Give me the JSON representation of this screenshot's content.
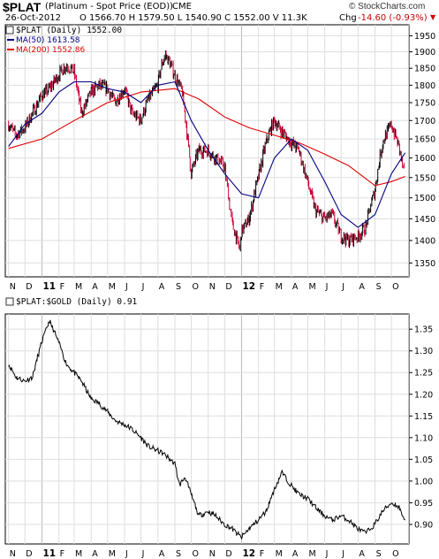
{
  "header": {
    "symbol": "$PLAT",
    "description": "(Platinum  - Spot Price (EOD))",
    "exchange": "CME",
    "date": "26-Oct-2012",
    "quote": "O 1566.70  H 1579.50  L 1540.90  C 1552.00  V 11.3K",
    "chg_label": "Chg",
    "chg_value": "-14.60 (-0.93%)",
    "chg_arrow": "▼",
    "watermark": "© StockCharts.com"
  },
  "legend": {
    "price": "$PLAT (Daily) 1552.00",
    "ma50": "MA(50) 1613.58",
    "ma200": "MA(200) 1552.86",
    "ratio": "$PLAT:$GOLD (Daily) 0.91"
  },
  "colors": {
    "up_bar": "#000000",
    "down_bar": "#cc0033",
    "ma50": "#000080",
    "ma200": "#e00000",
    "ratio_line": "#000000",
    "grid": "#dddddd",
    "year_divider": "#bbbbbb"
  },
  "chart_data": [
    {
      "type": "candlestick",
      "title": "$PLAT (Daily) 1552.00",
      "ylim": [
        1320,
        1985
      ],
      "y_ticks": [
        1350,
        1400,
        1450,
        1500,
        1550,
        1600,
        1650,
        1700,
        1750,
        1800,
        1850,
        1900,
        1950
      ],
      "x_tick_labels": [
        "N",
        "D",
        "11",
        "F",
        "M",
        "A",
        "M",
        "J",
        "J",
        "A",
        "S",
        "O",
        "N",
        "D",
        "12",
        "F",
        "M",
        "A",
        "M",
        "J",
        "J",
        "A",
        "S",
        "O"
      ],
      "scale": "log",
      "series": [
        {
          "name": "$PLAT",
          "x": [
            "2010-11-01",
            "2010-11-15",
            "2010-12-01",
            "2010-12-15",
            "2011-01-01",
            "2011-01-15",
            "2011-02-01",
            "2011-02-15",
            "2011-03-01",
            "2011-03-15",
            "2011-04-01",
            "2011-04-15",
            "2011-05-01",
            "2011-05-15",
            "2011-06-01",
            "2011-06-15",
            "2011-07-01",
            "2011-07-15",
            "2011-08-01",
            "2011-08-08",
            "2011-08-15",
            "2011-08-22",
            "2011-09-01",
            "2011-09-15",
            "2011-09-22",
            "2011-10-01",
            "2011-10-15",
            "2011-11-01",
            "2011-11-15",
            "2011-12-01",
            "2011-12-15",
            "2011-12-29",
            "2012-01-01",
            "2012-01-15",
            "2012-02-01",
            "2012-02-15",
            "2012-03-01",
            "2012-03-15",
            "2012-04-01",
            "2012-04-15",
            "2012-05-01",
            "2012-05-15",
            "2012-06-01",
            "2012-06-15",
            "2012-07-01",
            "2012-07-15",
            "2012-08-01",
            "2012-08-15",
            "2012-09-01",
            "2012-09-15",
            "2012-10-01",
            "2012-10-15",
            "2012-10-26"
          ],
          "values": [
            1690,
            1660,
            1680,
            1720,
            1770,
            1790,
            1830,
            1860,
            1840,
            1720,
            1780,
            1800,
            1790,
            1750,
            1790,
            1720,
            1700,
            1760,
            1800,
            1860,
            1890,
            1870,
            1830,
            1780,
            1690,
            1560,
            1620,
            1620,
            1600,
            1580,
            1440,
            1380,
            1420,
            1450,
            1550,
            1640,
            1700,
            1670,
            1640,
            1620,
            1540,
            1470,
            1450,
            1460,
            1410,
            1400,
            1410,
            1430,
            1520,
            1640,
            1690,
            1630,
            1552
          ]
        },
        {
          "name": "MA(50)",
          "x": [
            "2010-11-01",
            "2010-12-01",
            "2011-01-01",
            "2011-02-01",
            "2011-03-01",
            "2011-04-01",
            "2011-05-01",
            "2011-06-01",
            "2011-07-01",
            "2011-08-01",
            "2011-09-01",
            "2011-10-01",
            "2011-11-01",
            "2011-12-01",
            "2012-01-01",
            "2012-02-01",
            "2012-03-01",
            "2012-04-01",
            "2012-05-01",
            "2012-06-01",
            "2012-07-01",
            "2012-08-01",
            "2012-09-01",
            "2012-10-01",
            "2012-10-26"
          ],
          "values": [
            1630,
            1690,
            1720,
            1780,
            1810,
            1810,
            1790,
            1780,
            1750,
            1800,
            1810,
            1700,
            1620,
            1560,
            1510,
            1500,
            1600,
            1650,
            1620,
            1540,
            1460,
            1430,
            1460,
            1560,
            1613.58
          ]
        },
        {
          "name": "MA(200)",
          "x": [
            "2010-11-01",
            "2011-01-01",
            "2011-03-01",
            "2011-05-01",
            "2011-07-01",
            "2011-09-01",
            "2011-10-15",
            "2011-12-01",
            "2012-01-15",
            "2012-03-01",
            "2012-04-15",
            "2012-06-01",
            "2012-07-15",
            "2012-09-01",
            "2012-10-01",
            "2012-10-26"
          ],
          "values": [
            1625,
            1650,
            1700,
            1750,
            1780,
            1790,
            1760,
            1710,
            1680,
            1660,
            1640,
            1610,
            1580,
            1530,
            1540,
            1552.86
          ]
        }
      ]
    },
    {
      "type": "line",
      "title": "$PLAT:$GOLD (Daily) 0.91",
      "ylim": [
        0.855,
        1.385
      ],
      "y_ticks": [
        0.9,
        0.95,
        1.0,
        1.05,
        1.1,
        1.15,
        1.2,
        1.25,
        1.3,
        1.35
      ],
      "x_tick_labels": [
        "N",
        "D",
        "11",
        "F",
        "M",
        "A",
        "M",
        "J",
        "J",
        "A",
        "S",
        "O",
        "N",
        "D",
        "12",
        "F",
        "M",
        "A",
        "M",
        "J",
        "J",
        "A",
        "S",
        "O"
      ],
      "series": [
        {
          "name": "$PLAT:$GOLD",
          "x": [
            "2010-11-01",
            "2010-11-15",
            "2010-12-01",
            "2010-12-15",
            "2011-01-01",
            "2011-01-15",
            "2011-01-25",
            "2011-02-01",
            "2011-02-15",
            "2011-03-01",
            "2011-03-15",
            "2011-04-01",
            "2011-04-15",
            "2011-05-01",
            "2011-05-15",
            "2011-06-01",
            "2011-06-15",
            "2011-07-01",
            "2011-07-15",
            "2011-08-01",
            "2011-08-15",
            "2011-09-01",
            "2011-09-10",
            "2011-09-20",
            "2011-10-01",
            "2011-10-15",
            "2011-11-01",
            "2011-11-15",
            "2011-12-01",
            "2011-12-15",
            "2012-01-01",
            "2012-01-15",
            "2012-02-01",
            "2012-02-15",
            "2012-03-01",
            "2012-03-15",
            "2012-04-01",
            "2012-04-15",
            "2012-05-01",
            "2012-05-15",
            "2012-06-01",
            "2012-06-15",
            "2012-07-01",
            "2012-07-15",
            "2012-08-01",
            "2012-08-15",
            "2012-09-01",
            "2012-09-15",
            "2012-10-01",
            "2012-10-15",
            "2012-10-26"
          ],
          "values": [
            1.27,
            1.24,
            1.23,
            1.24,
            1.32,
            1.37,
            1.34,
            1.32,
            1.27,
            1.25,
            1.23,
            1.19,
            1.18,
            1.16,
            1.14,
            1.13,
            1.12,
            1.1,
            1.08,
            1.07,
            1.06,
            1.04,
            0.99,
            1.01,
            0.97,
            0.92,
            0.93,
            0.92,
            0.9,
            0.89,
            0.87,
            0.89,
            0.91,
            0.93,
            0.98,
            1.02,
            0.99,
            0.97,
            0.96,
            0.94,
            0.92,
            0.91,
            0.92,
            0.91,
            0.89,
            0.88,
            0.9,
            0.93,
            0.95,
            0.94,
            0.91
          ]
        }
      ]
    }
  ]
}
